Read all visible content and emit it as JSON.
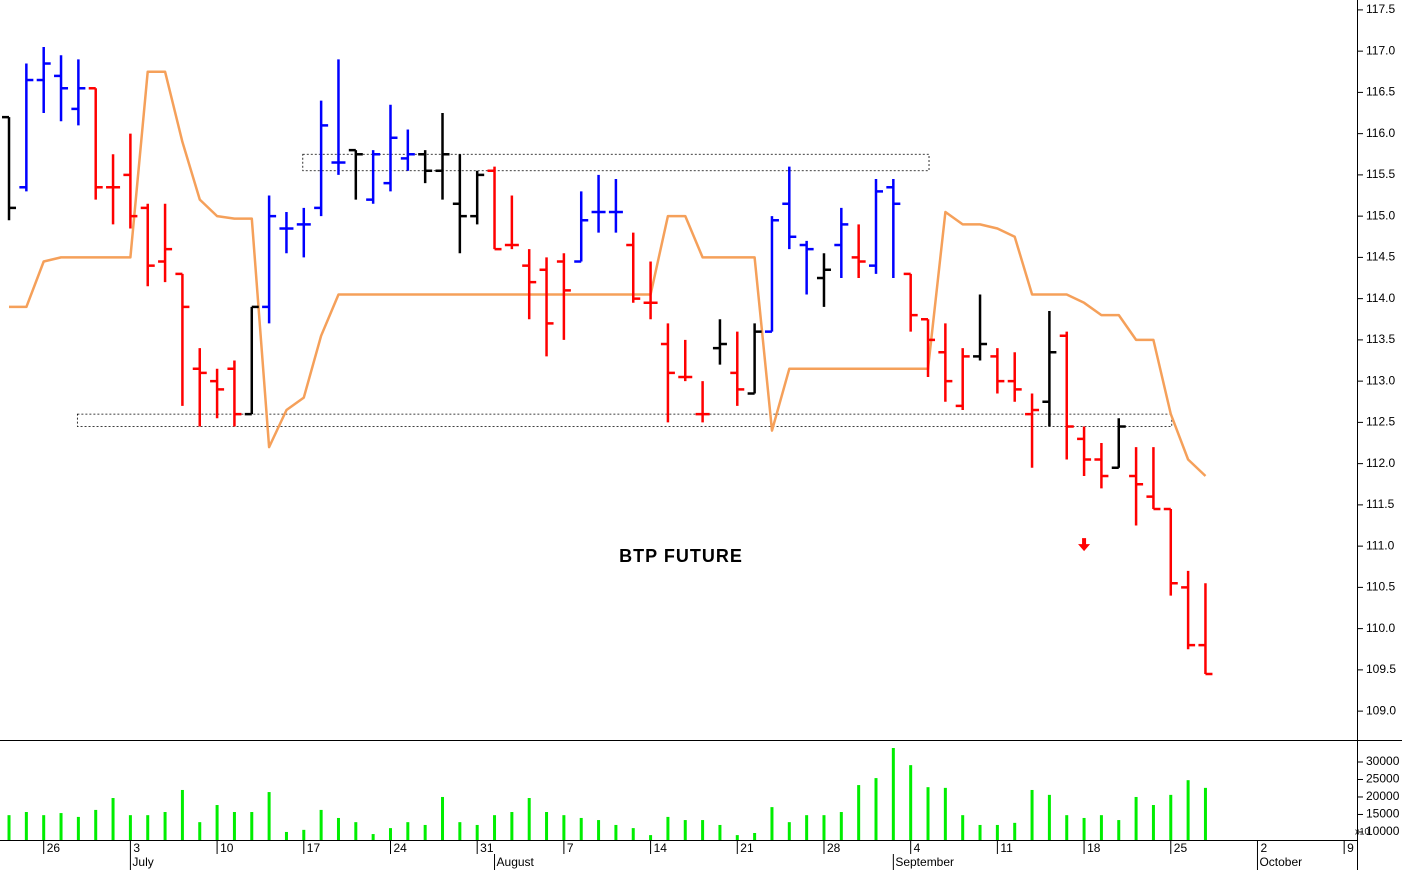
{
  "chart_data": {
    "type": "ohlc",
    "title": "BTP FUTURE",
    "xlim": [
      -0.52,
      77.74
    ],
    "ylim": [
      108.65,
      117.62
    ],
    "yticks": [
      {
        "value": 109.0,
        "label": "109.0"
      },
      {
        "value": 109.5,
        "label": "109.5"
      },
      {
        "value": 110.0,
        "label": "110.0"
      },
      {
        "value": 110.5,
        "label": "110.5"
      },
      {
        "value": 111.0,
        "label": "111.0"
      },
      {
        "value": 111.5,
        "label": "111.5"
      },
      {
        "value": 112.0,
        "label": "112.0"
      },
      {
        "value": 112.5,
        "label": "112.5"
      },
      {
        "value": 113.0,
        "label": "113.0"
      },
      {
        "value": 113.5,
        "label": "113.5"
      },
      {
        "value": 114.0,
        "label": "114.0"
      },
      {
        "value": 114.5,
        "label": "114.5"
      },
      {
        "value": 115.0,
        "label": "115.0"
      },
      {
        "value": 115.5,
        "label": "115.5"
      },
      {
        "value": 116.0,
        "label": "116.0"
      },
      {
        "value": 116.5,
        "label": "116.5"
      },
      {
        "value": 117.0,
        "label": "117.0"
      },
      {
        "value": 117.5,
        "label": "117.5"
      }
    ],
    "x_labels": [
      {
        "index": 2,
        "label": "26"
      },
      {
        "index": 7,
        "label": "3"
      },
      {
        "index": 12,
        "label": "10"
      },
      {
        "index": 17,
        "label": "17"
      },
      {
        "index": 22,
        "label": "24"
      },
      {
        "index": 27,
        "label": "31"
      },
      {
        "index": 32,
        "label": "7"
      },
      {
        "index": 37,
        "label": "14"
      },
      {
        "index": 42,
        "label": "21"
      },
      {
        "index": 47,
        "label": "28"
      },
      {
        "index": 52,
        "label": "4"
      },
      {
        "index": 57,
        "label": "11"
      },
      {
        "index": 62,
        "label": "18"
      },
      {
        "index": 67,
        "label": "25"
      },
      {
        "index": 72,
        "label": "2"
      },
      {
        "index": 77,
        "label": "9"
      }
    ],
    "month_labels": [
      {
        "index": 7,
        "label": "July"
      },
      {
        "index": 28,
        "label": "August"
      },
      {
        "index": 51,
        "label": "September"
      },
      {
        "index": 72,
        "label": "October"
      }
    ],
    "open": [
      116.2,
      115.35,
      116.65,
      116.7,
      116.3,
      116.55,
      115.35,
      115.5,
      115.1,
      114.45,
      114.3,
      113.15,
      113.0,
      113.15,
      112.6,
      113.9,
      114.85,
      114.9,
      115.1,
      115.65,
      115.8,
      115.2,
      115.4,
      115.7,
      115.75,
      115.55,
      115.15,
      115.0,
      115.55,
      114.65,
      114.4,
      114.35,
      114.45,
      114.45,
      115.05,
      115.05,
      114.65,
      113.95,
      113.45,
      113.05,
      112.6,
      113.4,
      113.1,
      112.85,
      113.6,
      115.15,
      114.65,
      114.25,
      114.65,
      114.5,
      114.4,
      115.35,
      114.3,
      113.75,
      113.35,
      112.7,
      113.3,
      113.3,
      113.0,
      112.6,
      112.75,
      113.55,
      112.3,
      112.05,
      111.95,
      111.85,
      111.6,
      111.45,
      110.5,
      109.8
    ],
    "high": [
      116.2,
      116.85,
      117.05,
      116.95,
      116.9,
      116.55,
      115.75,
      116.0,
      115.15,
      115.15,
      114.3,
      113.4,
      113.15,
      113.25,
      113.9,
      115.25,
      115.05,
      115.1,
      116.4,
      116.9,
      115.8,
      115.8,
      116.35,
      116.05,
      115.8,
      116.25,
      115.75,
      115.55,
      115.6,
      115.25,
      114.6,
      114.5,
      114.55,
      115.3,
      115.5,
      115.45,
      114.8,
      114.45,
      113.7,
      113.5,
      113.0,
      113.75,
      113.6,
      113.7,
      115.0,
      115.6,
      114.7,
      114.55,
      115.1,
      114.9,
      115.45,
      115.45,
      114.3,
      113.75,
      113.7,
      113.4,
      114.05,
      113.4,
      113.35,
      112.85,
      113.85,
      113.6,
      112.45,
      112.25,
      112.55,
      112.2,
      112.2,
      111.45,
      110.7,
      110.55
    ],
    "low": [
      114.95,
      115.3,
      116.25,
      116.15,
      116.1,
      115.2,
      114.9,
      114.85,
      114.15,
      114.2,
      112.7,
      112.45,
      112.55,
      112.45,
      112.6,
      113.7,
      114.55,
      114.5,
      115.0,
      115.5,
      115.2,
      115.15,
      115.3,
      115.55,
      115.4,
      115.2,
      114.55,
      114.9,
      114.6,
      114.6,
      113.75,
      113.3,
      113.5,
      114.45,
      114.8,
      114.8,
      113.95,
      113.75,
      112.5,
      113.0,
      112.5,
      113.2,
      112.7,
      112.85,
      113.6,
      114.6,
      114.05,
      113.9,
      114.25,
      114.25,
      114.3,
      114.25,
      113.6,
      113.05,
      112.75,
      112.65,
      113.25,
      112.85,
      112.75,
      111.95,
      112.45,
      112.05,
      111.85,
      111.7,
      111.95,
      111.25,
      111.45,
      110.4,
      109.75,
      109.45
    ],
    "close": [
      115.1,
      116.65,
      116.85,
      116.55,
      116.55,
      115.35,
      115.35,
      115.0,
      114.4,
      114.6,
      113.9,
      113.1,
      112.9,
      112.6,
      113.9,
      115.0,
      114.85,
      114.9,
      116.1,
      115.65,
      115.75,
      115.75,
      115.95,
      115.75,
      115.55,
      115.75,
      115.0,
      115.5,
      114.6,
      114.65,
      114.2,
      113.7,
      114.1,
      114.95,
      115.05,
      115.05,
      114.0,
      113.95,
      113.1,
      113.05,
      112.6,
      113.45,
      112.9,
      113.6,
      114.95,
      114.75,
      114.6,
      114.35,
      114.9,
      114.45,
      115.3,
      115.15,
      113.8,
      113.5,
      113.0,
      113.3,
      113.45,
      113.0,
      112.9,
      112.65,
      113.35,
      112.45,
      112.05,
      111.85,
      112.45,
      111.75,
      111.45,
      110.55,
      109.8,
      109.45
    ],
    "colors": [
      "#000000",
      "#0000ff",
      "#0000ff",
      "#0000ff",
      "#0000ff",
      "#ff0000",
      "#ff0000",
      "#ff0000",
      "#ff0000",
      "#ff0000",
      "#ff0000",
      "#ff0000",
      "#ff0000",
      "#ff0000",
      "#000000",
      "#0000ff",
      "#0000ff",
      "#0000ff",
      "#0000ff",
      "#0000ff",
      "#000000",
      "#0000ff",
      "#0000ff",
      "#0000ff",
      "#000000",
      "#000000",
      "#000000",
      "#000000",
      "#ff0000",
      "#ff0000",
      "#ff0000",
      "#ff0000",
      "#ff0000",
      "#0000ff",
      "#0000ff",
      "#0000ff",
      "#ff0000",
      "#ff0000",
      "#ff0000",
      "#ff0000",
      "#ff0000",
      "#000000",
      "#ff0000",
      "#000000",
      "#0000ff",
      "#0000ff",
      "#0000ff",
      "#000000",
      "#0000ff",
      "#ff0000",
      "#0000ff",
      "#0000ff",
      "#ff0000",
      "#ff0000",
      "#ff0000",
      "#ff0000",
      "#000000",
      "#ff0000",
      "#ff0000",
      "#ff0000",
      "#000000",
      "#ff0000",
      "#ff0000",
      "#ff0000",
      "#000000",
      "#ff0000",
      "#ff0000",
      "#ff0000",
      "#ff0000",
      "#ff0000"
    ],
    "line": {
      "color": "#f5a05a",
      "values": [
        113.9,
        113.9,
        114.45,
        114.5,
        114.5,
        114.5,
        114.5,
        114.5,
        116.75,
        116.75,
        115.9,
        115.2,
        115.0,
        114.97,
        114.97,
        112.2,
        112.65,
        112.8,
        113.55,
        114.05,
        114.05,
        114.05,
        114.05,
        114.05,
        114.05,
        114.05,
        114.05,
        114.05,
        114.05,
        114.05,
        114.05,
        114.05,
        114.05,
        114.05,
        114.05,
        114.05,
        114.05,
        114.05,
        115.0,
        115.0,
        114.5,
        114.5,
        114.5,
        114.5,
        112.4,
        113.15,
        113.15,
        113.15,
        113.15,
        113.15,
        113.15,
        113.15,
        113.15,
        113.15,
        115.05,
        114.9,
        114.9,
        114.85,
        114.75,
        114.05,
        114.05,
        114.05,
        113.95,
        113.8,
        113.8,
        113.5,
        113.5,
        112.6,
        112.05,
        111.85
      ]
    },
    "zones": [
      {
        "from": 17,
        "to": 53,
        "low": 115.55,
        "high": 115.75
      },
      {
        "from": 4,
        "to": 67,
        "low": 112.45,
        "high": 112.6
      }
    ],
    "arrow": {
      "index": 62,
      "value": 111.0,
      "color": "#ff0000"
    },
    "volume": {
      "color": "#00ee00",
      "ylim": [
        7700,
        36000
      ],
      "yticks": [
        10000,
        15000,
        20000,
        25000,
        30000
      ],
      "unit_label": "x10",
      "values": [
        14800,
        15700,
        14800,
        15400,
        14300,
        16300,
        19700,
        14800,
        14800,
        15700,
        22000,
        12800,
        17700,
        15700,
        15700,
        21400,
        10000,
        10600,
        16300,
        14000,
        12800,
        9400,
        11100,
        12800,
        12000,
        20000,
        12800,
        12000,
        14800,
        15700,
        19700,
        15700,
        14800,
        14000,
        13400,
        12000,
        11100,
        9100,
        14300,
        13400,
        13400,
        12000,
        9100,
        9700,
        17100,
        12800,
        14800,
        14800,
        15700,
        23400,
        25400,
        34000,
        29100,
        22800,
        22600,
        14800,
        12000,
        12000,
        12600,
        22000,
        20600,
        14800,
        14000,
        14800,
        13400,
        20000,
        17700,
        20600,
        24800,
        22600
      ]
    }
  }
}
